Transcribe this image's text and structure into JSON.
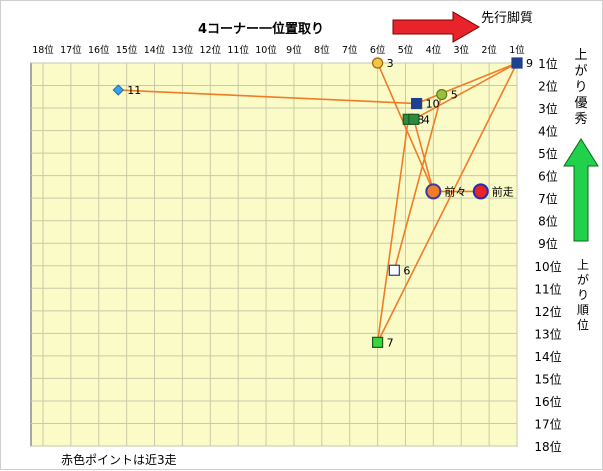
{
  "chart_data": {
    "type": "scatter",
    "title": "4コーナー一位置取り",
    "x_axis": {
      "label_top": "先行脚質",
      "ticks": [
        "18位",
        "17位",
        "16位",
        "15位",
        "14位",
        "13位",
        "12位",
        "11位",
        "10位",
        "9位",
        "8位",
        "7位",
        "6位",
        "5位",
        "4位",
        "3位",
        "2位",
        "1位"
      ],
      "range": [
        18,
        1
      ]
    },
    "y_axis": {
      "label_top": "上がり優秀",
      "label_bottom": "上がり順位",
      "ticks": [
        "1位",
        "2位",
        "3位",
        "4位",
        "5位",
        "6位",
        "7位",
        "8位",
        "9位",
        "10位",
        "11位",
        "12位",
        "13位",
        "14位",
        "15位",
        "16位",
        "17位",
        "18位"
      ],
      "range": [
        1,
        18
      ]
    },
    "grid": true,
    "footnote": "赤色ポイントは近3走",
    "path_color": "#f07c2a",
    "points": [
      {
        "label": "9",
        "x": 1.0,
        "y": 1.0,
        "shape": "square",
        "fill": "#1f3f8f",
        "stroke": "#1f3f8f"
      },
      {
        "label": "3",
        "x": 6.0,
        "y": 1.0,
        "shape": "circle",
        "fill": "#f3c44a",
        "stroke": "#9a6a00"
      },
      {
        "label": "5",
        "x": 3.7,
        "y": 2.4,
        "shape": "circle",
        "fill": "#9cbf3a",
        "stroke": "#5c7a1a"
      },
      {
        "label": "11",
        "x": 15.3,
        "y": 2.2,
        "shape": "diamond",
        "fill": "#3aa0e8",
        "stroke": "#1f6fb0"
      },
      {
        "label": "10",
        "x": 4.6,
        "y": 2.8,
        "shape": "square",
        "fill": "#1f3f8f",
        "stroke": "#1f3f8f"
      },
      {
        "label": "8",
        "x": 4.9,
        "y": 3.5,
        "shape": "square",
        "fill": "#2e8b3e",
        "stroke": "#1a5a26"
      },
      {
        "label": "4",
        "x": 4.7,
        "y": 3.5,
        "shape": "square",
        "fill": "#2e8b3e",
        "stroke": "#1a5a26"
      },
      {
        "label": "前々",
        "x": 4.0,
        "y": 6.7,
        "shape": "circle",
        "fill": "#f07c2a",
        "stroke": "#3a3aa0",
        "size": "large"
      },
      {
        "label": "前走",
        "x": 2.3,
        "y": 6.7,
        "shape": "circle",
        "fill": "#e8232a",
        "stroke": "#1f2fb0",
        "size": "large"
      },
      {
        "label": "6",
        "x": 5.4,
        "y": 10.2,
        "shape": "square",
        "fill": "#ffffff",
        "stroke": "#1f3f8f"
      },
      {
        "label": "7",
        "x": 6.0,
        "y": 13.4,
        "shape": "square",
        "fill": "#3bd63b",
        "stroke": "#1a5a26"
      }
    ],
    "segments": [
      [
        "11",
        "10"
      ],
      [
        "10",
        "9"
      ],
      [
        "3",
        "前々"
      ],
      [
        "9",
        "7"
      ],
      [
        "5",
        "6"
      ],
      [
        "9",
        "4"
      ],
      [
        "4",
        "前々"
      ],
      [
        "前々",
        "前走"
      ],
      [
        "7",
        "8"
      ]
    ]
  }
}
